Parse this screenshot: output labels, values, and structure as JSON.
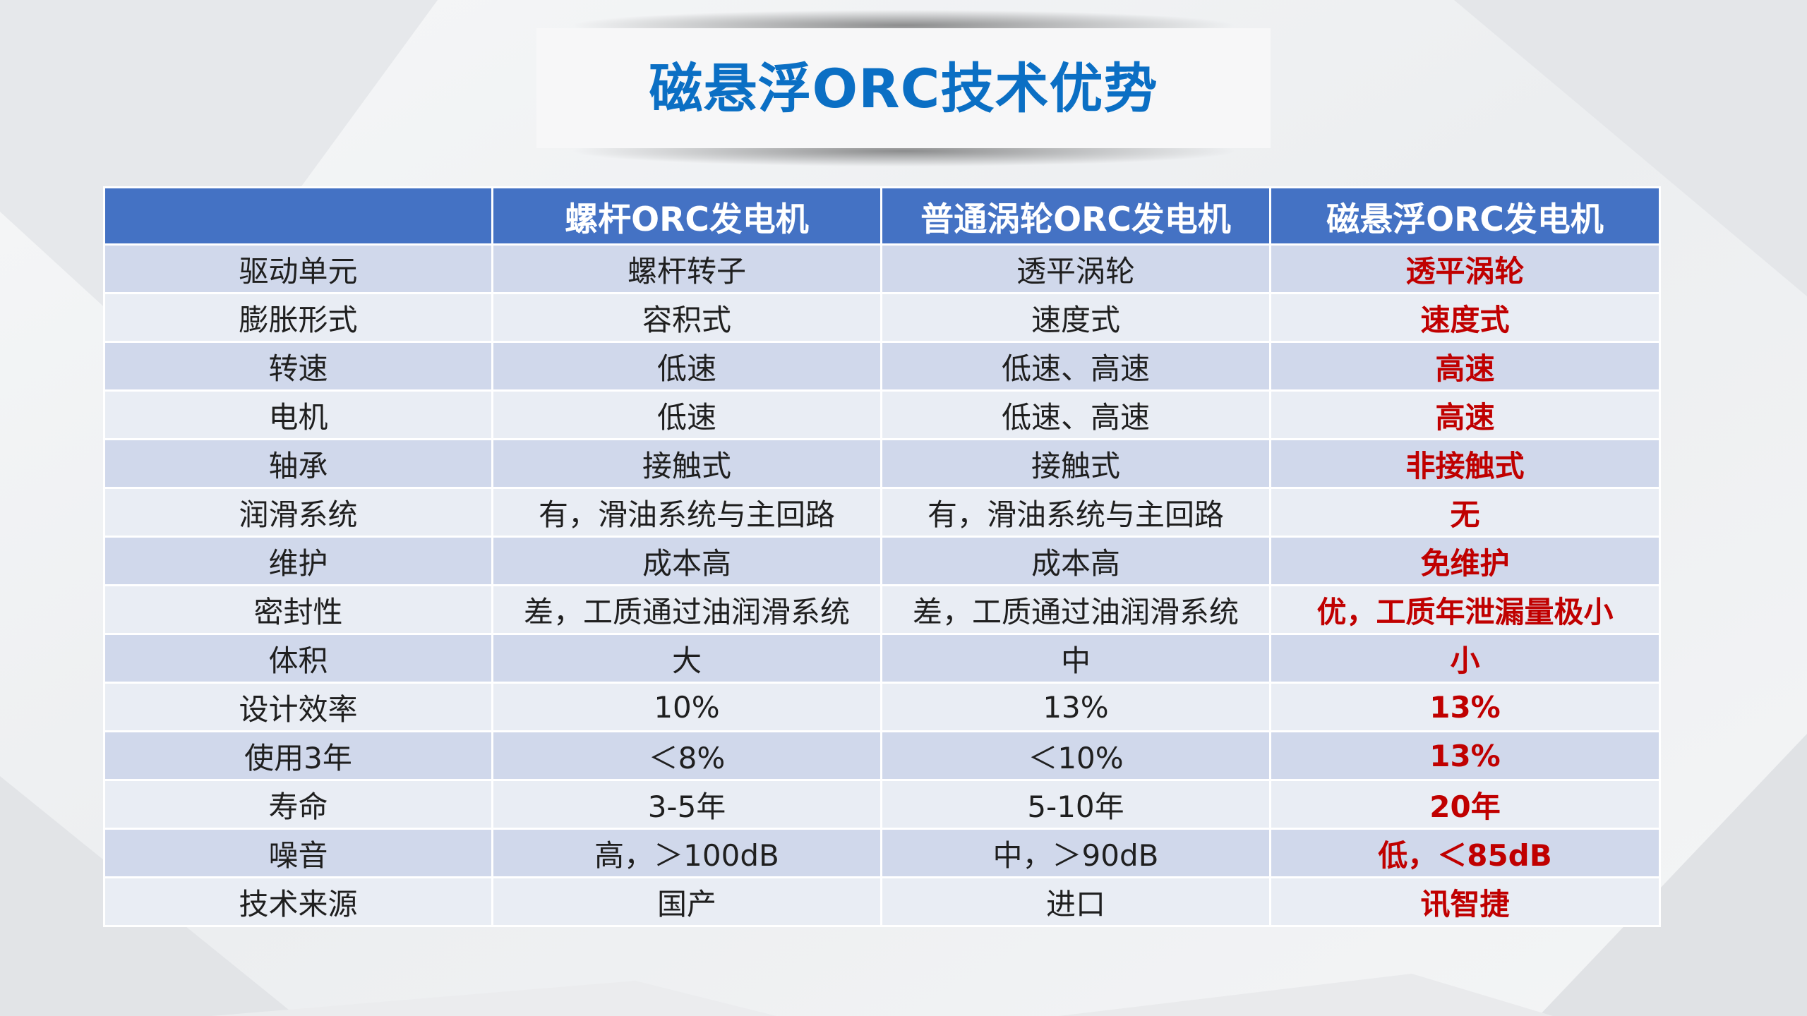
{
  "title": "磁悬浮ORC技术优势",
  "colors": {
    "title": "#0b6fc4",
    "header_bg": "#4472c4",
    "row_odd": "#d0d8eb",
    "row_even": "#e9edf4",
    "highlight": "#c00000"
  },
  "table": {
    "headers": [
      "",
      "螺杆ORC发电机",
      "普通涡轮ORC发电机",
      "磁悬浮ORC发电机"
    ],
    "rows": [
      [
        "驱动单元",
        "螺杆转子",
        "透平涡轮",
        "透平涡轮"
      ],
      [
        "膨胀形式",
        "容积式",
        "速度式",
        "速度式"
      ],
      [
        "转速",
        "低速",
        "低速、高速",
        "高速"
      ],
      [
        "电机",
        "低速",
        "低速、高速",
        "高速"
      ],
      [
        "轴承",
        "接触式",
        "接触式",
        "非接触式"
      ],
      [
        "润滑系统",
        "有，滑油系统与主回路",
        "有，滑油系统与主回路",
        "无"
      ],
      [
        "维护",
        "成本高",
        "成本高",
        "免维护"
      ],
      [
        "密封性",
        "差，工质通过油润滑系统",
        "差，工质通过油润滑系统",
        "优，工质年泄漏量极小"
      ],
      [
        "体积",
        "大",
        "中",
        "小"
      ],
      [
        "设计效率",
        "10%",
        "13%",
        "13%"
      ],
      [
        "使用3年",
        "＜8%",
        "＜10%",
        "13%"
      ],
      [
        "寿命",
        "3-5年",
        "5-10年",
        "20年"
      ],
      [
        "噪音",
        "高，＞100dB",
        "中，＞90dB",
        "低，＜85dB"
      ],
      [
        "技术来源",
        "国产",
        "进口",
        "讯智捷"
      ]
    ]
  }
}
